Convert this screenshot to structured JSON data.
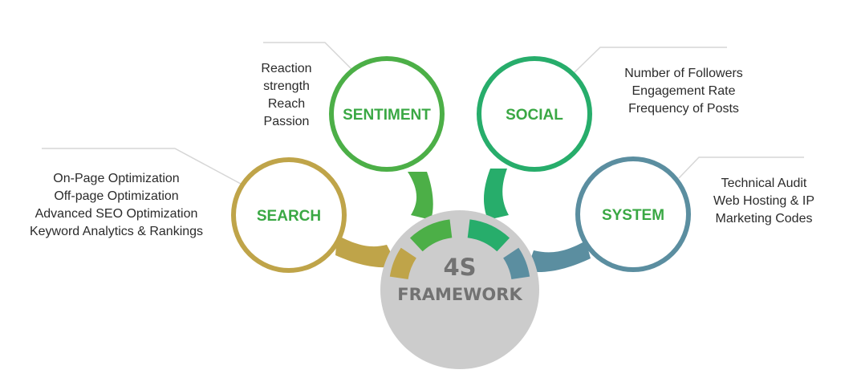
{
  "hub": {
    "title": "4S",
    "subtitle": "FRAMEWORK"
  },
  "colors": {
    "search": "#bfa449",
    "sentiment": "#4caf47",
    "social": "#27ad6b",
    "system": "#5b8ea0",
    "hub_fill": "#cccccc",
    "label_green": "#3aa844"
  },
  "nodes": {
    "search": {
      "label": "SEARCH",
      "items": [
        "On-Page Optimization",
        "Off-page Optimization",
        "Advanced SEO Optimization",
        "Keyword Analytics & Rankings"
      ]
    },
    "sentiment": {
      "label": "SENTIMENT",
      "items": [
        "Reaction",
        "strength",
        "Reach",
        "Passion"
      ]
    },
    "social": {
      "label": "SOCIAL",
      "items": [
        "Number of Followers",
        "Engagement Rate",
        "Frequency of Posts"
      ]
    },
    "system": {
      "label": "SYSTEM",
      "items": [
        "Technical Audit",
        "Web Hosting & IP",
        "Marketing Codes"
      ]
    }
  }
}
